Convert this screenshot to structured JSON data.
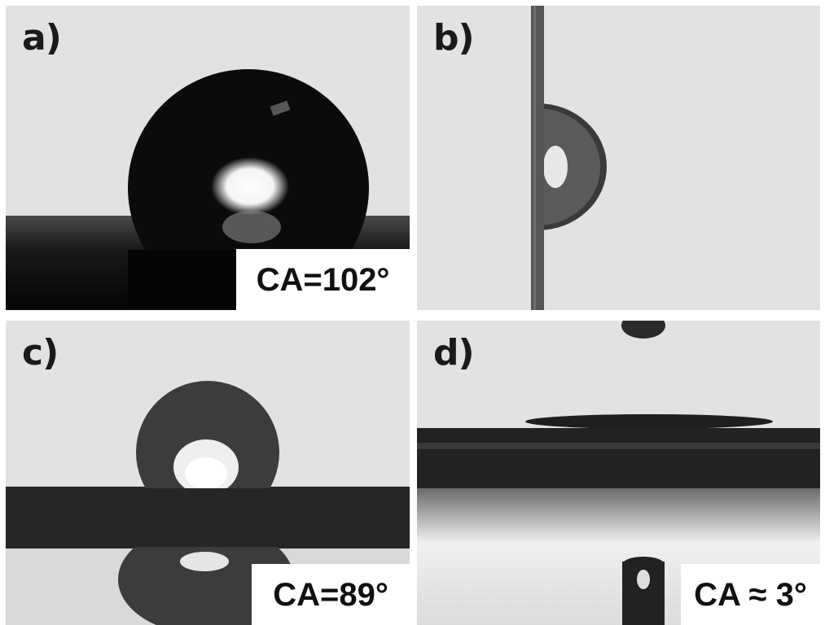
{
  "panels": [
    {
      "label": "a)",
      "contact_angle_text": "CA=102°"
    },
    {
      "label": "b)",
      "contact_angle_text": ""
    },
    {
      "label": "c)",
      "contact_angle_text": "CA=89°"
    },
    {
      "label": "d)",
      "contact_angle_text": "CA ≈ 3°"
    }
  ],
  "colors": {
    "background": "#e2e2e2",
    "dark_droplet": "#0b0b0b",
    "gray_droplet": "#3c3c3c",
    "fiber": "#222222"
  }
}
